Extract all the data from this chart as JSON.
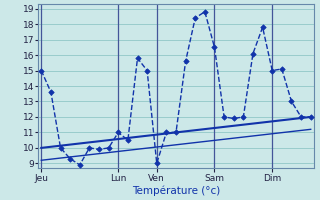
{
  "xlabel": "Température (°c)",
  "background_color": "#cce8e8",
  "grid_color": "#99cccc",
  "line_color": "#1133aa",
  "separator_color": "#445599",
  "ylim_min": 9,
  "ylim_max": 19,
  "yticks": [
    9,
    10,
    11,
    12,
    13,
    14,
    15,
    16,
    17,
    18,
    19
  ],
  "x_tick_labels": [
    "Jeu",
    "Lun",
    "Ven",
    "Sam",
    "Dim"
  ],
  "x_tick_positions": [
    0,
    8,
    12,
    18,
    24
  ],
  "xlim_min": -0.3,
  "xlim_max": 28.3,
  "curve1_x": [
    0,
    1,
    2,
    3,
    4,
    5,
    6,
    7,
    8,
    9,
    10,
    11,
    12,
    13,
    14,
    15,
    16,
    17,
    18,
    19,
    20,
    21,
    22,
    23,
    24,
    25,
    26,
    27,
    28
  ],
  "curve1_y": [
    15.0,
    13.6,
    10.0,
    9.3,
    8.9,
    10.0,
    9.9,
    10.0,
    11.0,
    10.5,
    15.8,
    15.0,
    9.0,
    11.0,
    11.0,
    15.6,
    18.4,
    18.8,
    16.5,
    12.0,
    11.9,
    12.0,
    16.1,
    17.8,
    15.0,
    15.1,
    13.0,
    12.0,
    12.0
  ],
  "trendline1_x": [
    0,
    28
  ],
  "trendline1_y": [
    10.0,
    12.0
  ],
  "trendline2_x": [
    0,
    28
  ],
  "trendline2_y": [
    9.2,
    11.2
  ],
  "ylabel_fontsize": 6.5,
  "xlabel_fontsize": 7.5,
  "xtick_fontsize": 6.5,
  "marker_size": 2.8,
  "curve_linewidth": 1.0,
  "trend_linewidth1": 1.5,
  "trend_linewidth2": 1.0
}
